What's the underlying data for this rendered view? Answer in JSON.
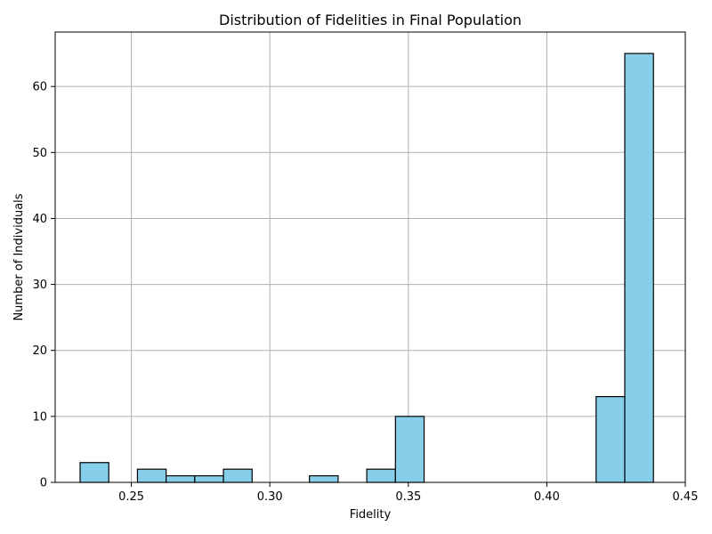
{
  "chart_data": {
    "type": "bar",
    "title": "Distribution of Fidelities in Final Population",
    "xlabel": "Fidelity",
    "ylabel": "Number of Individuals",
    "xlim": [
      0.2225,
      0.45
    ],
    "ylim": [
      0,
      68.25
    ],
    "xticks": [
      "0.25",
      "0.30",
      "0.35",
      "0.40",
      "0.45"
    ],
    "xtick_values": [
      0.25,
      0.3,
      0.35,
      0.4,
      0.45
    ],
    "yticks": [
      "0",
      "10",
      "20",
      "30",
      "40",
      "50",
      "60"
    ],
    "ytick_values": [
      0,
      10,
      20,
      30,
      40,
      50,
      60
    ],
    "grid": true,
    "bar_color": "#87ceeb",
    "edge_color": "#000000",
    "bin_start": 0.2315,
    "bin_width": 0.01035,
    "values": [
      3,
      0,
      2,
      1,
      1,
      2,
      0,
      0,
      1,
      0,
      2,
      10,
      0,
      0,
      0,
      0,
      0,
      0,
      13,
      65
    ]
  }
}
